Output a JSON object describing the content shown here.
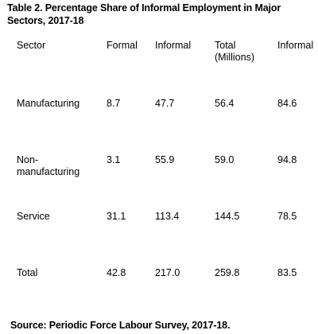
{
  "caption": {
    "line1": "Table 2. Percentage Share of Informal Employment in Major",
    "line2": "Sectors, 2017-18"
  },
  "table": {
    "headers": {
      "sector": "Sector",
      "formal": "Formal",
      "informal": "Informal",
      "total_line1": "Total",
      "total_line2": "(Millions)",
      "share": "Informal"
    },
    "rows": [
      {
        "sector_line1": "Manufacturing",
        "sector_line2": "",
        "formal": "8.7",
        "informal": "47.7",
        "total": "56.4",
        "share": "84.6"
      },
      {
        "sector_line1": "Non-",
        "sector_line2": "manufacturing",
        "formal": "3.1",
        "informal": "55.9",
        "total": "59.0",
        "share": "94.8"
      },
      {
        "sector_line1": "Service",
        "sector_line2": "",
        "formal": "31.1",
        "informal": "113.4",
        "total": "144.5",
        "share": "78.5"
      },
      {
        "sector_line1": "Total",
        "sector_line2": "",
        "formal": "42.8",
        "informal": "217.0",
        "total": "259.8",
        "share": "83.5"
      }
    ]
  },
  "footer": {
    "source": "Source: Periodic Force Labour Survey, 2017-18."
  }
}
